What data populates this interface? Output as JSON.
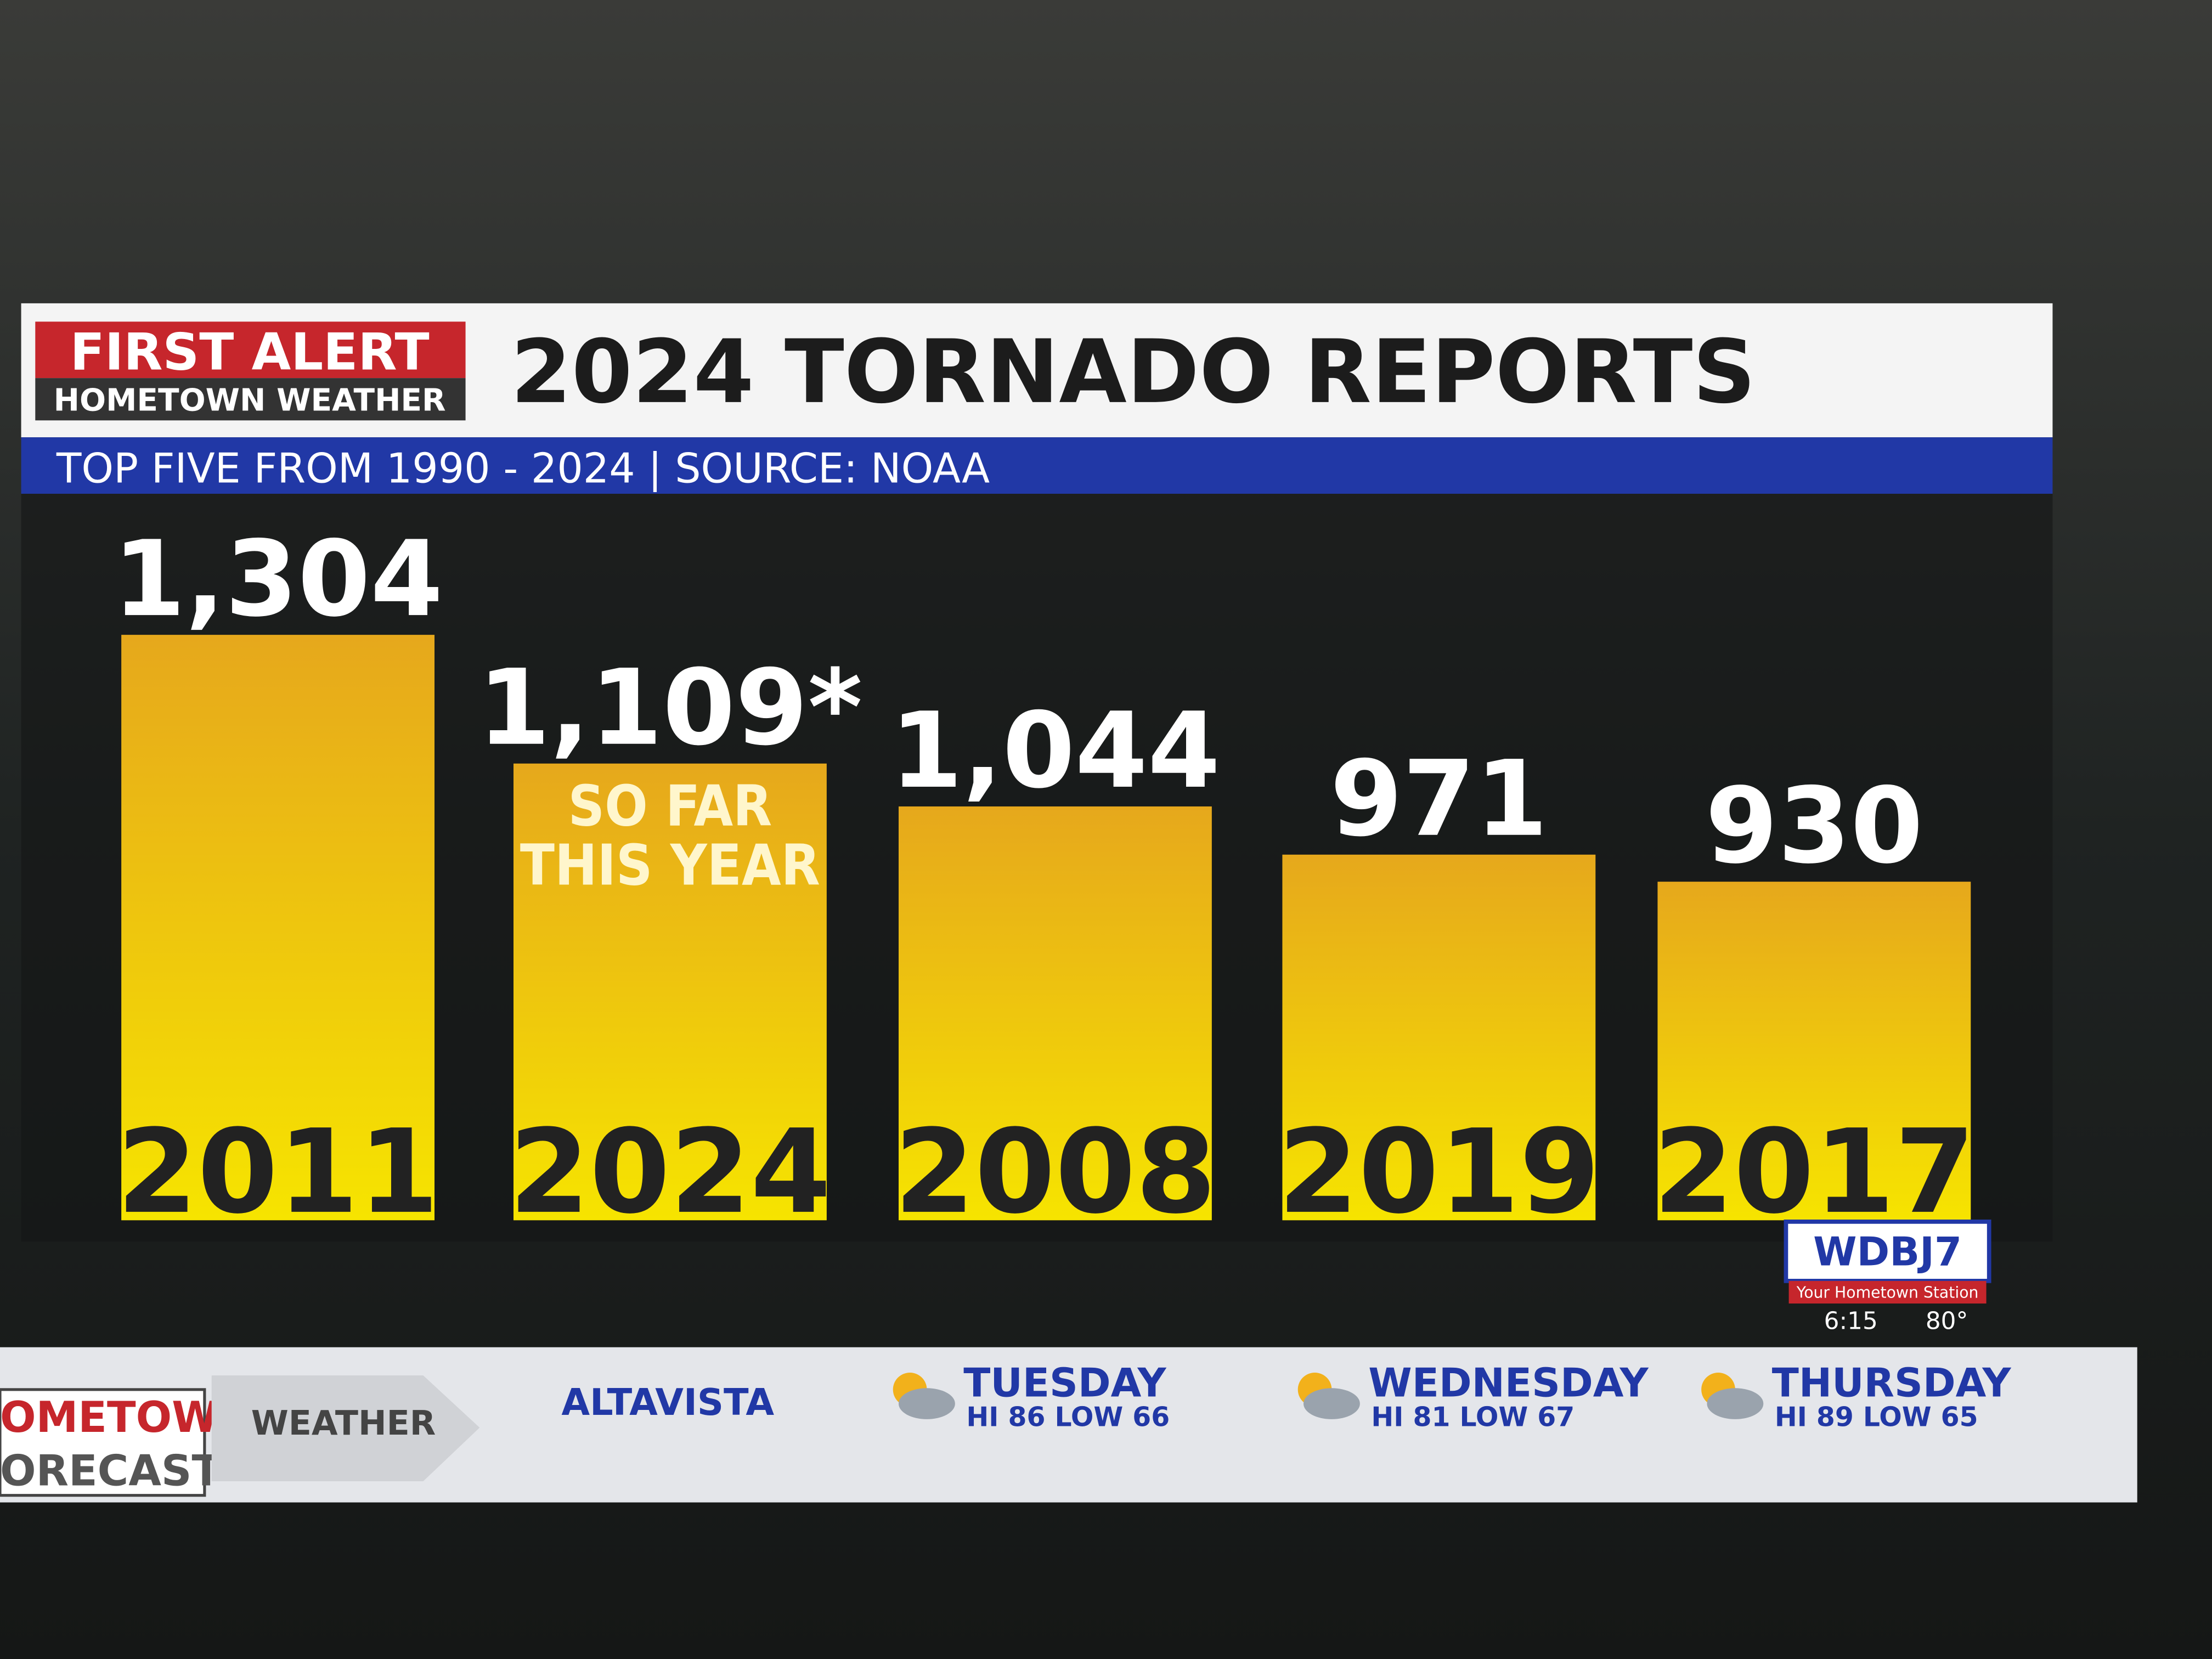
{
  "brand": {
    "title": "FIRST ALERT",
    "subtitle": "HOMETOWN WEATHER"
  },
  "chart_data": {
    "type": "bar",
    "title": "2024 TORNADO REPORTS",
    "subtitle": "TOP FIVE FROM 1990 - 2024 | SOURCE: NOAA",
    "categories": [
      "2011",
      "2024",
      "2008",
      "2019",
      "2017"
    ],
    "values": [
      1304,
      1109,
      1044,
      971,
      930
    ],
    "value_labels": [
      "1,304",
      "1,109*",
      "1,044",
      "971",
      "930"
    ],
    "annotation": "SO FAR THIS YEAR",
    "color": "#f0c000"
  },
  "station": {
    "logo": "WDBJ7",
    "tagline": "Your Hometown Station",
    "time": "6:15",
    "temp": "80°"
  },
  "ticker": {
    "brand": [
      "OMETOWN",
      "ORECAST"
    ],
    "label": "WEATHER",
    "location": "ALTAVISTA",
    "days": [
      {
        "day": "TUESDAY",
        "forecast": "HI 86 LOW 66"
      },
      {
        "day": "WEDNESDAY",
        "forecast": "HI 81 LOW 67"
      },
      {
        "day": "THURSDAY",
        "forecast": "HI 89 LOW 65"
      }
    ]
  }
}
